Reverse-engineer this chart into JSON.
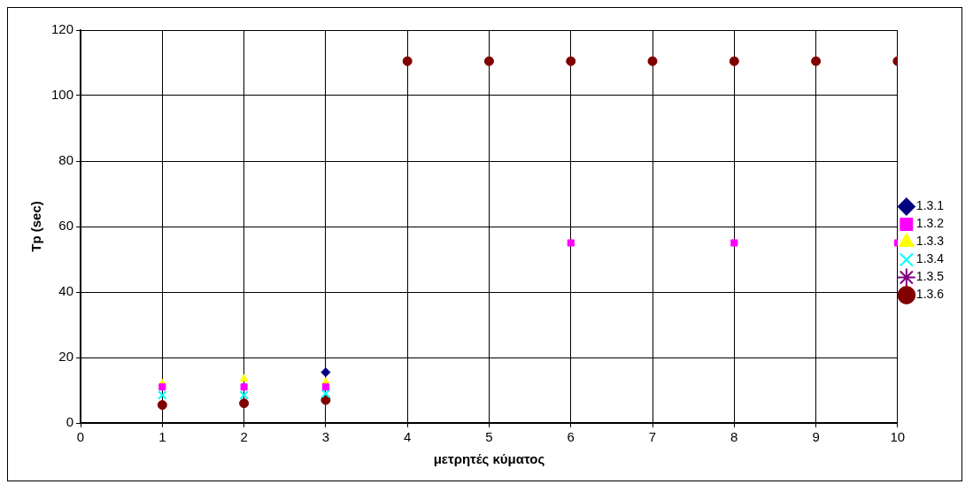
{
  "chart_data": {
    "type": "scatter",
    "xlabel": "μετρητές κύματος",
    "ylabel": "Tp (sec)",
    "x": [
      1,
      2,
      3,
      4,
      5,
      6,
      7,
      8,
      9,
      10
    ],
    "xlim": [
      0,
      10
    ],
    "xticks": [
      0,
      1,
      2,
      3,
      4,
      5,
      6,
      7,
      8,
      9,
      10
    ],
    "ylim": [
      0,
      120
    ],
    "yticks": [
      0,
      20,
      40,
      60,
      80,
      100,
      120
    ],
    "grid": true,
    "legend": "right",
    "series": [
      {
        "name": "1.3.1",
        "color": "#000080",
        "marker": "diamond",
        "values": [
          null,
          null,
          15.5,
          null,
          null,
          null,
          null,
          null,
          null,
          null
        ]
      },
      {
        "name": "1.3.2",
        "color": "#ff00ff",
        "marker": "square",
        "values": [
          11,
          11,
          11,
          null,
          null,
          55,
          null,
          55,
          null,
          55
        ]
      },
      {
        "name": "1.3.3",
        "color": "#ffff00",
        "marker": "triangle",
        "values": [
          12,
          13.5,
          12.5,
          null,
          null,
          null,
          null,
          null,
          null,
          null
        ]
      },
      {
        "name": "1.3.4",
        "color": "#00ffff",
        "marker": "cross",
        "values": [
          8.5,
          8.5,
          9,
          null,
          null,
          null,
          null,
          null,
          null,
          null
        ]
      },
      {
        "name": "1.3.5",
        "color": "#800080",
        "marker": "star",
        "values": [
          null,
          null,
          null,
          null,
          null,
          null,
          null,
          null,
          null,
          null
        ]
      },
      {
        "name": "1.3.6",
        "color": "#800000",
        "marker": "circle",
        "values": [
          5.5,
          6,
          7,
          110.5,
          110.5,
          110.5,
          110.5,
          110.5,
          110.5,
          110.5
        ]
      }
    ]
  }
}
